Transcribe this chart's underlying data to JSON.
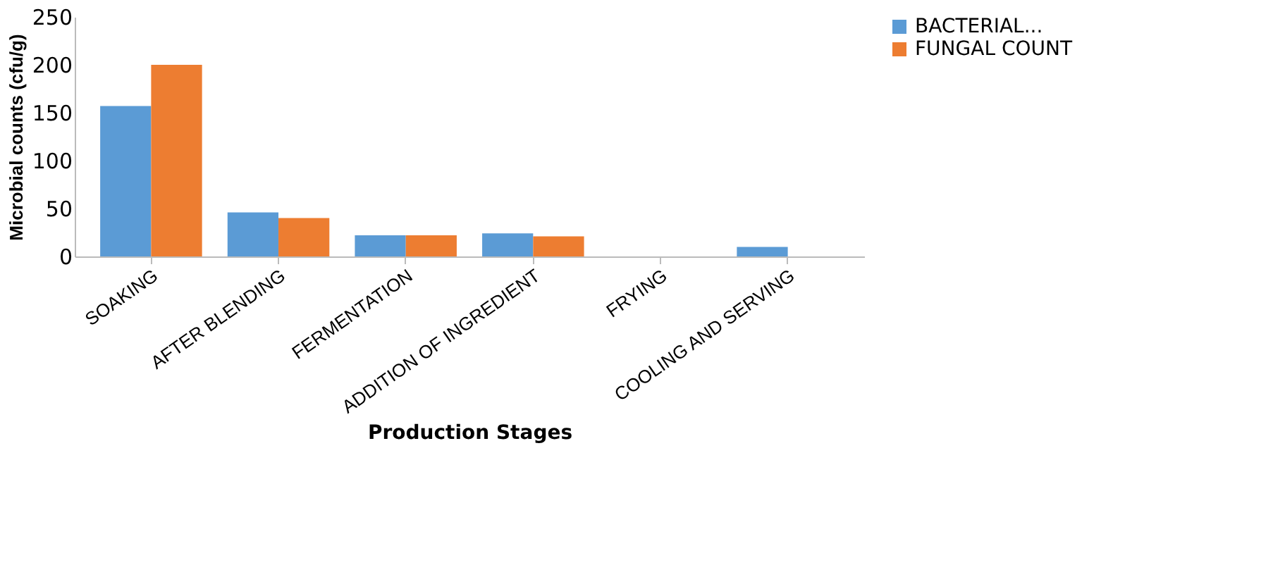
{
  "chart_data": {
    "type": "bar",
    "xlabel": "Production Stages",
    "ylabel": "Microbial counts (cfu/g)",
    "categories": [
      "SOAKING",
      "AFTER BLENDING",
      "FERMENTATION",
      "ADDITION OF INGREDIENT",
      "FRYING",
      "COOLING AND SERVING"
    ],
    "series": [
      {
        "name": "BACTERIAL...",
        "color": "#5b9bd5",
        "values": [
          157,
          46,
          22,
          24,
          0,
          10
        ]
      },
      {
        "name": "FUNGAL COUNT",
        "color": "#ed7d31",
        "values": [
          200,
          40,
          22,
          21,
          0,
          0
        ]
      }
    ],
    "ylim": [
      0,
      250
    ],
    "yticks": [
      0,
      50,
      100,
      150,
      200,
      250
    ],
    "grid": false,
    "legend": "right"
  }
}
